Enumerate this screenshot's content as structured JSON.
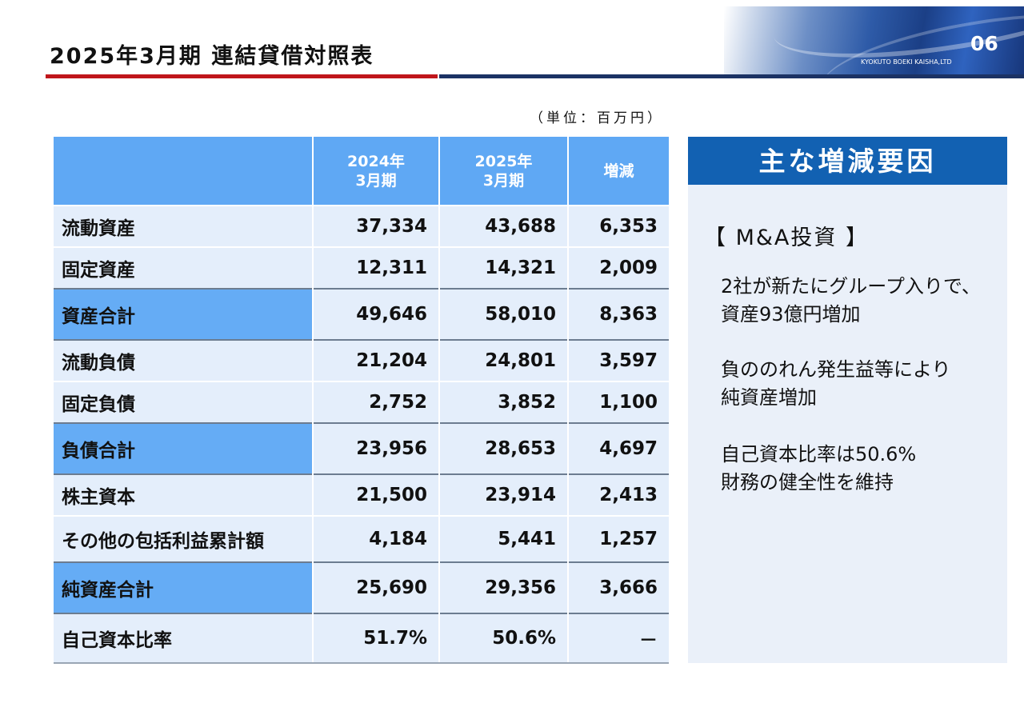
{
  "header": {
    "title": "2025年3月期 連結貸借対照表",
    "page_number": "06",
    "company": "KYOKUTO BOEKI KAISHA,LTD"
  },
  "unit_label": "（単位：百万円）",
  "table": {
    "columns": [
      "",
      "2024年\n3月期",
      "2025年\n3月期",
      "増減"
    ],
    "rows": [
      {
        "label": "流動資産",
        "fy2024": "37,334",
        "fy2025": "43,688",
        "change": "6,353"
      },
      {
        "label": "固定資産",
        "fy2024": "12,311",
        "fy2025": "14,321",
        "change": "2,009"
      },
      {
        "label": "資産合計",
        "fy2024": "49,646",
        "fy2025": "58,010",
        "change": "8,363"
      },
      {
        "label": "流動負債",
        "fy2024": "21,204",
        "fy2025": "24,801",
        "change": "3,597"
      },
      {
        "label": "固定負債",
        "fy2024": "2,752",
        "fy2025": "3,852",
        "change": "1,100"
      },
      {
        "label": "負債合計",
        "fy2024": "23,956",
        "fy2025": "28,653",
        "change": "4,697"
      },
      {
        "label": "株主資本",
        "fy2024": "21,500",
        "fy2025": "23,914",
        "change": "2,413"
      },
      {
        "label": "その他の包括利益累計額",
        "fy2024": "4,184",
        "fy2025": "5,441",
        "change": "1,257"
      },
      {
        "label": "純資産合計",
        "fy2024": "25,690",
        "fy2025": "29,356",
        "change": "3,666"
      },
      {
        "label": "自己資本比率",
        "fy2024": "51.7%",
        "fy2025": "50.6%",
        "change": "－"
      }
    ]
  },
  "side_panel": {
    "title": "主な増減要因",
    "subtitle": "【 M&A投資 】",
    "points": [
      {
        "line1": "2社が新たにグループ入りで、",
        "line2": "資産93億円増加"
      },
      {
        "line1": "負ののれん発生益等により",
        "line2": "純資産増加"
      },
      {
        "line1": "自己資本比率は50.6%",
        "line2": "財務の健全性を維持"
      }
    ]
  },
  "colors": {
    "accent_red": "#c0151b",
    "navy": "#1b3264",
    "header_blue": "#5fa8f4",
    "row_bg": "#e4eefb",
    "panel_head": "#1261b2"
  }
}
